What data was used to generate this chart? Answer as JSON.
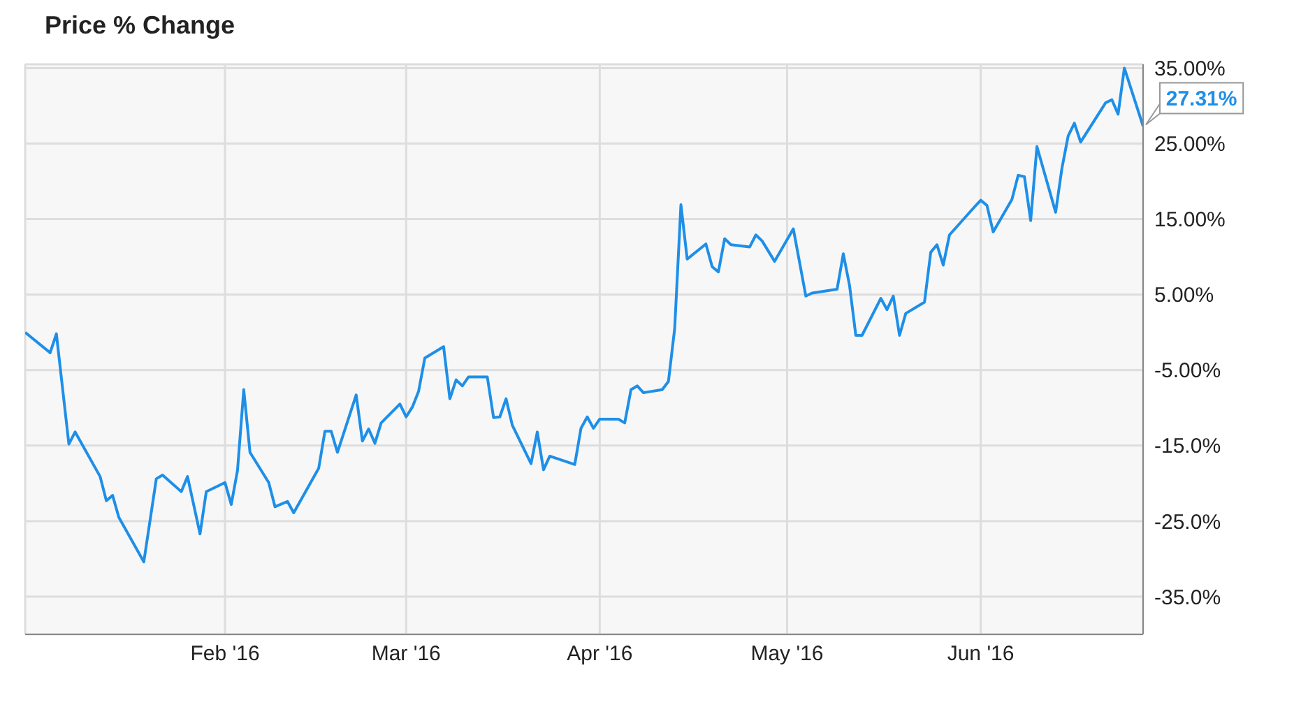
{
  "chart_data": {
    "type": "line",
    "title": "Price % Change",
    "color": "#1e8fe8",
    "grid": true,
    "legend": false,
    "marker": "none",
    "line_style": "solid",
    "x": [
      "2015-12-31",
      "2016-01-04",
      "2016-01-05",
      "2016-01-07",
      "2016-01-08",
      "2016-01-12",
      "2016-01-13",
      "2016-01-14",
      "2016-01-15",
      "2016-01-19",
      "2016-01-21",
      "2016-01-22",
      "2016-01-25",
      "2016-01-26",
      "2016-01-28",
      "2016-01-29",
      "2016-02-01",
      "2016-02-02",
      "2016-02-03",
      "2016-02-04",
      "2016-02-05",
      "2016-02-08",
      "2016-02-09",
      "2016-02-11",
      "2016-02-12",
      "2016-02-16",
      "2016-02-17",
      "2016-02-18",
      "2016-02-19",
      "2016-02-22",
      "2016-02-23",
      "2016-02-24",
      "2016-02-25",
      "2016-02-26",
      "2016-02-29",
      "2016-03-01",
      "2016-03-02",
      "2016-03-03",
      "2016-03-04",
      "2016-03-07",
      "2016-03-08",
      "2016-03-09",
      "2016-03-10",
      "2016-03-11",
      "2016-03-14",
      "2016-03-15",
      "2016-03-16",
      "2016-03-17",
      "2016-03-18",
      "2016-03-21",
      "2016-03-22",
      "2016-03-23",
      "2016-03-24",
      "2016-03-28",
      "2016-03-29",
      "2016-03-30",
      "2016-03-31",
      "2016-04-01",
      "2016-04-04",
      "2016-04-05",
      "2016-04-06",
      "2016-04-07",
      "2016-04-08",
      "2016-04-11",
      "2016-04-12",
      "2016-04-13",
      "2016-04-14",
      "2016-04-15",
      "2016-04-18",
      "2016-04-19",
      "2016-04-20",
      "2016-04-21",
      "2016-04-22",
      "2016-04-25",
      "2016-04-26",
      "2016-04-27",
      "2016-04-29",
      "2016-05-02",
      "2016-05-04",
      "2016-05-05",
      "2016-05-09",
      "2016-05-10",
      "2016-05-11",
      "2016-05-12",
      "2016-05-13",
      "2016-05-16",
      "2016-05-17",
      "2016-05-18",
      "2016-05-19",
      "2016-05-20",
      "2016-05-23",
      "2016-05-24",
      "2016-05-25",
      "2016-05-26",
      "2016-05-27",
      "2016-05-31",
      "2016-06-01",
      "2016-06-02",
      "2016-06-03",
      "2016-06-06",
      "2016-06-07",
      "2016-06-08",
      "2016-06-09",
      "2016-06-10",
      "2016-06-13",
      "2016-06-14",
      "2016-06-15",
      "2016-06-16",
      "2016-06-17",
      "2016-06-21",
      "2016-06-22",
      "2016-06-23",
      "2016-06-24",
      "2016-06-27"
    ],
    "values": [
      0,
      -2.7,
      -0.2,
      -14.8,
      -13.2,
      -19.1,
      -22.3,
      -21.6,
      -24.5,
      -30.4,
      -19.4,
      -18.9,
      -21.1,
      -19.1,
      -26.7,
      -21.1,
      -19.9,
      -22.8,
      -18.3,
      -7.6,
      -15.9,
      -19.9,
      -23.1,
      -22.4,
      -23.9,
      -18.0,
      -13.1,
      -13.1,
      -15.9,
      -8.3,
      -14.4,
      -12.8,
      -14.7,
      -12.0,
      -9.5,
      -11.2,
      -9.9,
      -7.8,
      -3.4,
      -1.9,
      -8.8,
      -6.3,
      -7.1,
      -5.9,
      -5.9,
      -11.3,
      -11.2,
      -8.8,
      -12.3,
      -17.4,
      -13.2,
      -18.2,
      -16.4,
      -17.5,
      -12.7,
      -11.2,
      -12.7,
      -11.5,
      -11.5,
      -12.0,
      -7.6,
      -7.1,
      -8.0,
      -7.6,
      -6.5,
      0.5,
      16.9,
      9.7,
      11.7,
      8.7,
      8.0,
      12.4,
      11.6,
      11.3,
      12.9,
      12.1,
      9.4,
      13.7,
      4.8,
      5.2,
      5.7,
      10.4,
      6.2,
      -0.4,
      -0.4,
      4.5,
      3.0,
      4.8,
      -0.4,
      2.5,
      4.0,
      10.6,
      11.6,
      8.9,
      12.9,
      16.6,
      17.5,
      16.8,
      13.3,
      17.6,
      20.8,
      20.6,
      14.8,
      24.6,
      15.9,
      21.7,
      26.0,
      27.7,
      25.2,
      30.4,
      30.8,
      28.9,
      35.0,
      27.31
    ],
    "value_labels": [
      null,
      null,
      null,
      null,
      null,
      null,
      null,
      null,
      null,
      null,
      null,
      null,
      null,
      null,
      null,
      null,
      null,
      null,
      null,
      null,
      null,
      null,
      null,
      null,
      null,
      null,
      null,
      null,
      null,
      null,
      null,
      null,
      null,
      null,
      null,
      null,
      null,
      null,
      null,
      null,
      null,
      null,
      null,
      null,
      null,
      null,
      null,
      null,
      null,
      null,
      null,
      null,
      null,
      null,
      null,
      null,
      null,
      null,
      null,
      null,
      null,
      null,
      null,
      null,
      null,
      null,
      null,
      null,
      null,
      null,
      null,
      null,
      null,
      null,
      null,
      null,
      null,
      null,
      null,
      null,
      null,
      null,
      null,
      null,
      null,
      null,
      null,
      null,
      null,
      null,
      null,
      null,
      null,
      null,
      null,
      null,
      null,
      null,
      null,
      null,
      null,
      null,
      null,
      null,
      null,
      null,
      null,
      null,
      null,
      null,
      null,
      null,
      null,
      "27.31%"
    ],
    "xlim": [
      "2015-12-31",
      "2016-06-27"
    ],
    "xticks": [
      {
        "value": "2016-02-01",
        "label": "Feb '16"
      },
      {
        "value": "2016-03-01",
        "label": "Mar '16"
      },
      {
        "value": "2016-04-01",
        "label": "Apr '16"
      },
      {
        "value": "2016-05-01",
        "label": "May '16"
      },
      {
        "value": "2016-06-01",
        "label": "Jun '16"
      }
    ],
    "ylim": [
      -40,
      35.5
    ],
    "yticks": [
      {
        "value": -35,
        "label": "-35.0%"
      },
      {
        "value": -25,
        "label": "-25.0%"
      },
      {
        "value": -15,
        "label": "-15.0%"
      },
      {
        "value": -5,
        "label": "-5.00%"
      },
      {
        "value": 5,
        "label": "5.00%"
      },
      {
        "value": 15,
        "label": "15.00%"
      },
      {
        "value": 25,
        "label": "25.00%"
      },
      {
        "value": 35,
        "label": "35.00%"
      }
    ]
  }
}
